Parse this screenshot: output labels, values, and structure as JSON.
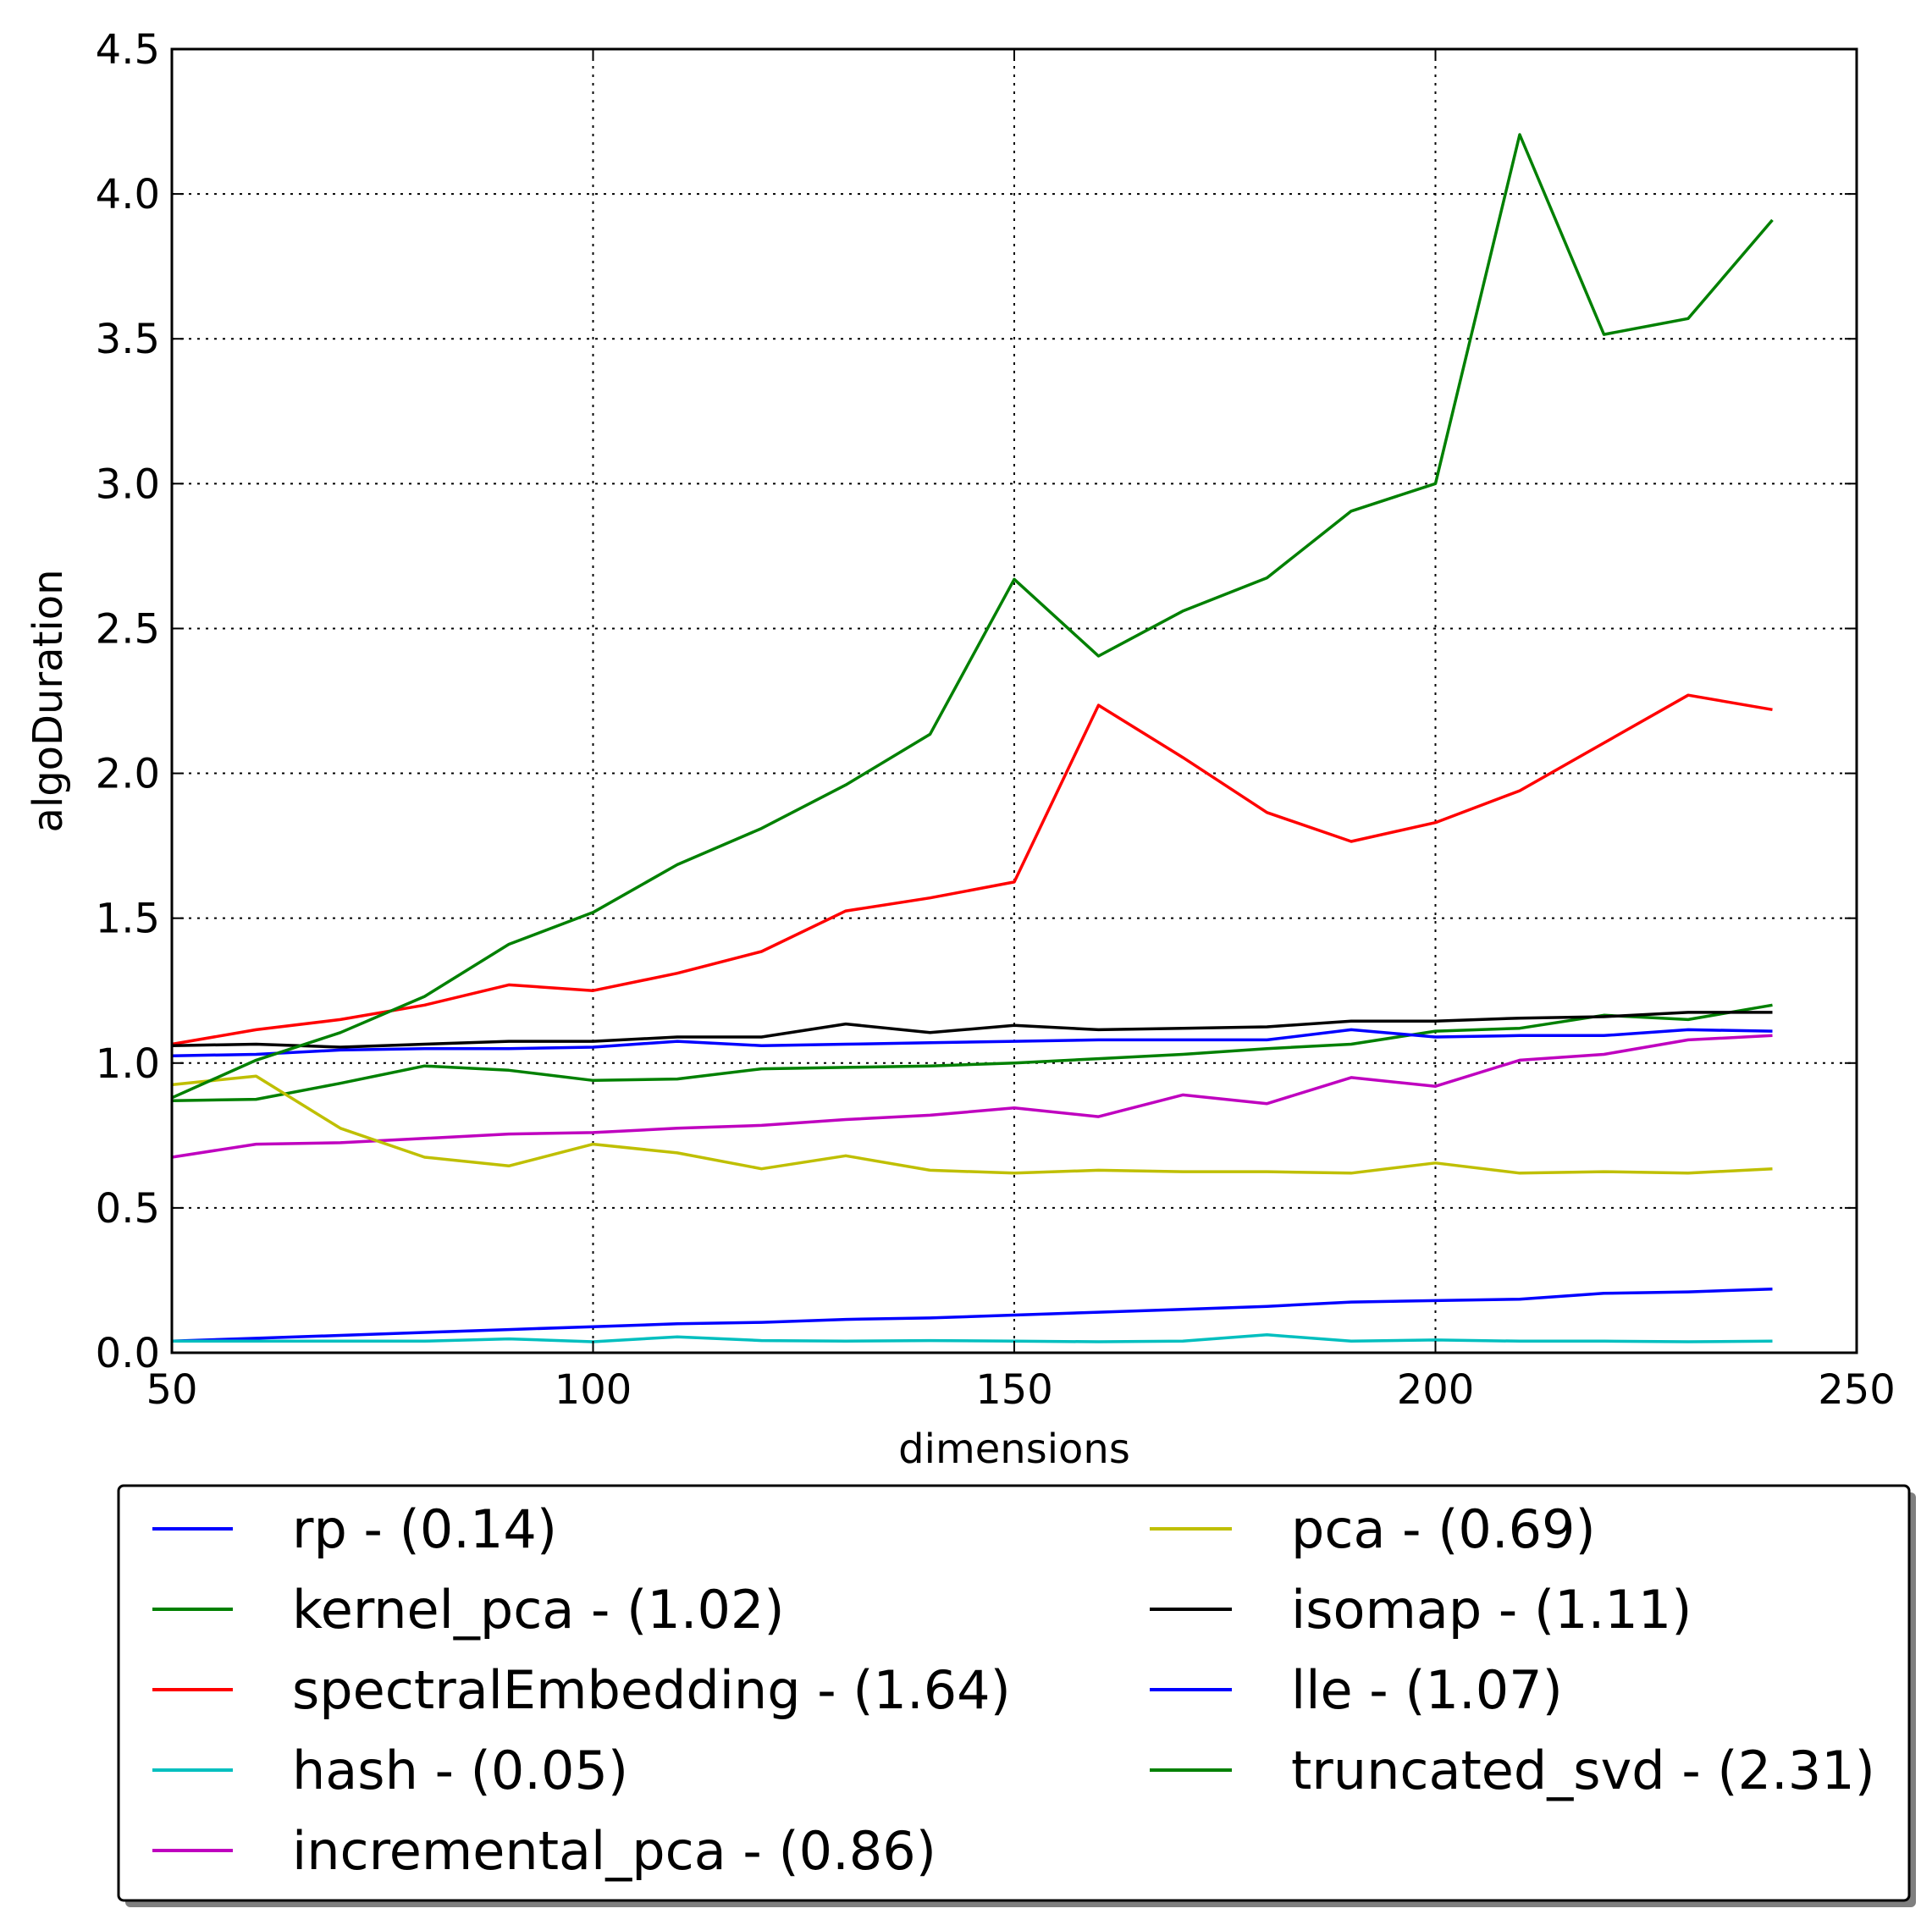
{
  "chart_data": {
    "type": "line",
    "title": "",
    "xlabel": "dimensions",
    "ylabel": "algoDuration",
    "xlim": [
      50,
      250
    ],
    "ylim": [
      0.0,
      4.5
    ],
    "xticks": [
      50,
      100,
      150,
      200,
      250
    ],
    "xtick_labels": [
      "50",
      "100",
      "150",
      "200",
      "250"
    ],
    "yticks": [
      0.0,
      0.5,
      1.0,
      1.5,
      2.0,
      2.5,
      3.0,
      3.5,
      4.0,
      4.5
    ],
    "ytick_labels": [
      "0.0",
      "0.5",
      "1.0",
      "1.5",
      "2.0",
      "2.5",
      "3.0",
      "3.5",
      "4.0",
      "4.5"
    ],
    "grid": true,
    "legend_position": "below",
    "x": [
      50,
      60,
      70,
      80,
      90,
      100,
      110,
      120,
      130,
      140,
      150,
      160,
      170,
      180,
      190,
      200,
      210,
      220,
      230,
      240
    ],
    "series": [
      {
        "name": "rp - (0.14)",
        "color": "#0000ff",
        "values": [
          0.04,
          0.05,
          0.06,
          0.07,
          0.08,
          0.09,
          0.1,
          0.105,
          0.115,
          0.12,
          0.13,
          0.14,
          0.15,
          0.16,
          0.175,
          0.18,
          0.185,
          0.205,
          0.21,
          0.22
        ]
      },
      {
        "name": "kernel_pca - (1.02)",
        "color": "#008000",
        "values": [
          0.87,
          0.875,
          0.93,
          0.99,
          0.975,
          0.94,
          0.945,
          0.98,
          0.985,
          0.99,
          1.0,
          1.015,
          1.03,
          1.05,
          1.065,
          1.11,
          1.12,
          1.165,
          1.15,
          1.2
        ]
      },
      {
        "name": "spectralEmbedding - (1.64)",
        "color": "#ff0000",
        "values": [
          1.065,
          1.115,
          1.15,
          1.2,
          1.27,
          1.25,
          1.31,
          1.385,
          1.525,
          1.57,
          1.625,
          2.235,
          2.055,
          1.865,
          1.765,
          1.83,
          1.94,
          2.105,
          2.27,
          2.22
        ]
      },
      {
        "name": "hash - (0.05)",
        "color": "#00bfbf",
        "values": [
          0.04,
          0.04,
          0.04,
          0.04,
          0.048,
          0.038,
          0.055,
          0.042,
          0.04,
          0.042,
          0.04,
          0.038,
          0.04,
          0.062,
          0.04,
          0.044,
          0.04,
          0.04,
          0.038,
          0.04
        ]
      },
      {
        "name": "incremental_pca - (0.86)",
        "color": "#bf00bf",
        "values": [
          0.675,
          0.72,
          0.725,
          0.74,
          0.755,
          0.76,
          0.775,
          0.785,
          0.805,
          0.82,
          0.845,
          0.815,
          0.89,
          0.86,
          0.95,
          0.92,
          1.01,
          1.03,
          1.08,
          1.095
        ]
      },
      {
        "name": "pca - (0.69)",
        "color": "#bfbf00",
        "values": [
          0.925,
          0.955,
          0.775,
          0.675,
          0.645,
          0.72,
          0.69,
          0.635,
          0.68,
          0.63,
          0.62,
          0.63,
          0.625,
          0.625,
          0.62,
          0.655,
          0.62,
          0.625,
          0.62,
          0.635
        ]
      },
      {
        "name": "isomap - (1.11)",
        "color": "#000000",
        "values": [
          1.06,
          1.065,
          1.055,
          1.065,
          1.075,
          1.075,
          1.09,
          1.09,
          1.135,
          1.105,
          1.13,
          1.115,
          1.12,
          1.125,
          1.145,
          1.145,
          1.155,
          1.16,
          1.175,
          1.175
        ]
      },
      {
        "name": "lle - (1.07)",
        "color": "#0000ff",
        "values": [
          1.025,
          1.03,
          1.045,
          1.05,
          1.05,
          1.055,
          1.075,
          1.06,
          1.065,
          1.07,
          1.075,
          1.08,
          1.08,
          1.08,
          1.115,
          1.09,
          1.095,
          1.095,
          1.115,
          1.11
        ]
      },
      {
        "name": "truncated_svd - (2.31)",
        "color": "#008000",
        "values": [
          0.88,
          1.01,
          1.105,
          1.23,
          1.41,
          1.52,
          1.685,
          1.81,
          1.96,
          2.135,
          2.67,
          2.405,
          2.56,
          2.675,
          2.905,
          3.0,
          4.205,
          3.515,
          3.57,
          3.91
        ]
      }
    ],
    "legend_columns": [
      [
        "rp - (0.14)",
        "kernel_pca - (1.02)",
        "spectralEmbedding - (1.64)",
        "hash - (0.05)",
        "incremental_pca - (0.86)"
      ],
      [
        "pca - (0.69)",
        "isomap - (1.11)",
        "lle - (1.07)",
        "truncated_svd - (2.31)"
      ]
    ]
  }
}
